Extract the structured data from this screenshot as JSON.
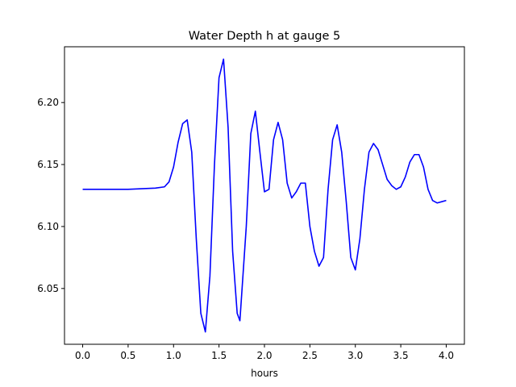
{
  "chart_data": {
    "type": "line",
    "title": "Water Depth h at gauge 5",
    "xlabel": "hours",
    "ylabel": "",
    "xlim": [
      -0.2,
      4.2
    ],
    "ylim": [
      6.005,
      6.245
    ],
    "xticks": [
      0.0,
      0.5,
      1.0,
      1.5,
      2.0,
      2.5,
      3.0,
      3.5,
      4.0
    ],
    "xtick_labels": [
      "0.0",
      "0.5",
      "1.0",
      "1.5",
      "2.0",
      "2.5",
      "3.0",
      "3.5",
      "4.0"
    ],
    "yticks": [
      6.05,
      6.1,
      6.15,
      6.2
    ],
    "ytick_labels": [
      "6.05",
      "6.10",
      "6.15",
      "6.20"
    ],
    "grid": false,
    "series": [
      {
        "color": "#0000ff",
        "x": [
          0.0,
          0.5,
          0.8,
          0.9,
          0.95,
          1.0,
          1.05,
          1.1,
          1.15,
          1.2,
          1.25,
          1.3,
          1.35,
          1.4,
          1.45,
          1.5,
          1.55,
          1.6,
          1.65,
          1.7,
          1.73,
          1.8,
          1.85,
          1.9,
          1.95,
          2.0,
          2.05,
          2.1,
          2.15,
          2.2,
          2.25,
          2.3,
          2.35,
          2.4,
          2.45,
          2.5,
          2.55,
          2.6,
          2.65,
          2.7,
          2.75,
          2.8,
          2.85,
          2.9,
          2.95,
          3.0,
          3.05,
          3.1,
          3.15,
          3.2,
          3.25,
          3.3,
          3.35,
          3.4,
          3.45,
          3.5,
          3.55,
          3.6,
          3.65,
          3.7,
          3.75,
          3.8,
          3.85,
          3.9,
          3.95,
          4.0
        ],
        "y": [
          6.13,
          6.13,
          6.131,
          6.132,
          6.136,
          6.148,
          6.168,
          6.183,
          6.186,
          6.16,
          6.09,
          6.03,
          6.015,
          6.06,
          6.15,
          6.22,
          6.235,
          6.18,
          6.08,
          6.03,
          6.024,
          6.1,
          6.175,
          6.193,
          6.16,
          6.128,
          6.13,
          6.17,
          6.184,
          6.17,
          6.135,
          6.123,
          6.128,
          6.135,
          6.135,
          6.1,
          6.08,
          6.068,
          6.075,
          6.13,
          6.17,
          6.182,
          6.16,
          6.12,
          6.075,
          6.065,
          6.09,
          6.13,
          6.16,
          6.167,
          6.162,
          6.15,
          6.138,
          6.133,
          6.13,
          6.132,
          6.14,
          6.152,
          6.158,
          6.158,
          6.148,
          6.13,
          6.121,
          6.119,
          6.12,
          6.121
        ]
      }
    ]
  }
}
